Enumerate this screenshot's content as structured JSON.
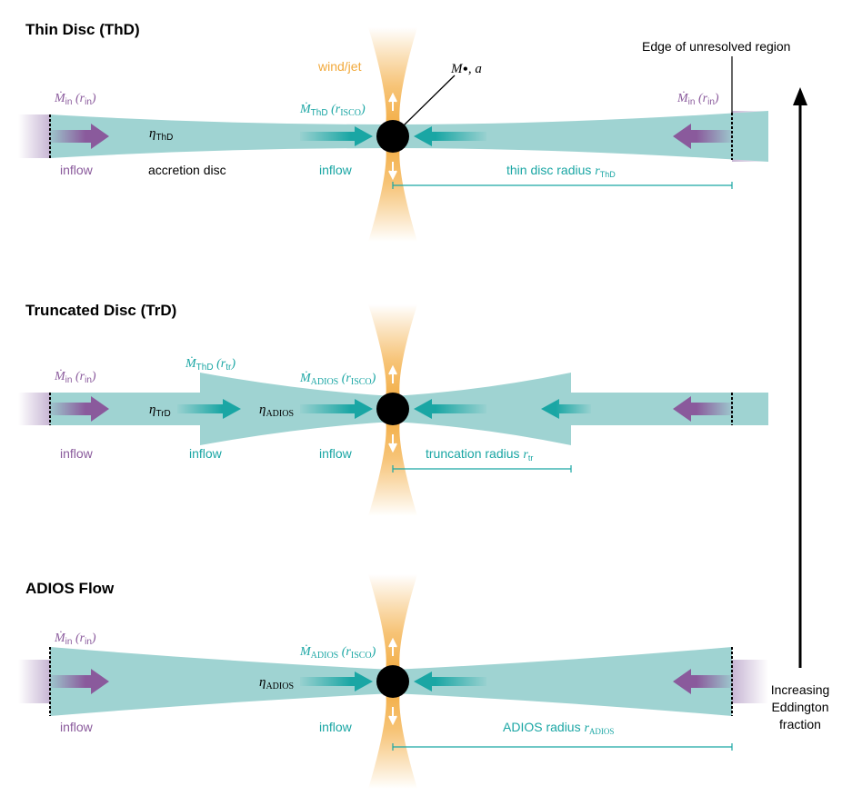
{
  "colors": {
    "teal": "#1aa6a4",
    "disc": "#9fd3d2",
    "purple": "#8a5a9c",
    "orange": "#f2a93b",
    "black": "#000000"
  },
  "panels": [
    {
      "title": "Thin Disc (ThD)",
      "mdot_left_sym": "Ṁ",
      "mdot_left_sub": "in",
      "mdot_left_arg": "r",
      "mdot_left_argsub": "in",
      "mdot_center_sym": "Ṁ",
      "mdot_center_sub": "ThD",
      "mdot_center_arg": "r",
      "mdot_center_argsub": "ISCO",
      "mdot_right_sym": "Ṁ",
      "mdot_right_sub": "in",
      "mdot_right_arg": "r",
      "mdot_right_argsub": "in",
      "eta_sym": "η",
      "eta_sub": "ThD",
      "inflow_left": "inflow",
      "inflow_center": "inflow",
      "disc_label": "accretion disc",
      "wind_label": "wind/jet",
      "bh_label_m": "M",
      "bh_label_a": "a",
      "edge_label": "Edge of unresolved region",
      "radius_text": "thin disc radius ",
      "radius_sym": "r",
      "radius_sub": "ThD"
    },
    {
      "title": "Truncated Disc (TrD)",
      "mdot_left_sym": "Ṁ",
      "mdot_left_sub": "in",
      "mdot_left_arg": "r",
      "mdot_left_argsub": "in",
      "mdot_mid_sym": "Ṁ",
      "mdot_mid_sub": "ThD",
      "mdot_mid_arg": "r",
      "mdot_mid_argsub": "tr",
      "mdot_center_sym": "Ṁ",
      "mdot_center_sub": "ADIOS",
      "mdot_center_arg": "r",
      "mdot_center_argsub": "ISCO",
      "eta1_sym": "η",
      "eta1_sub": "TrD",
      "eta2_sym": "η",
      "eta2_sub": "ADIOS",
      "inflow_left": "inflow",
      "inflow_mid": "inflow",
      "inflow_center": "inflow",
      "radius_text": "truncation radius ",
      "radius_sym": "r",
      "radius_sub": "tr"
    },
    {
      "title": "ADIOS Flow",
      "mdot_left_sym": "Ṁ",
      "mdot_left_sub": "in",
      "mdot_left_arg": "r",
      "mdot_left_argsub": "in",
      "mdot_center_sym": "Ṁ",
      "mdot_center_sub": "ADIOS",
      "mdot_center_arg": "r",
      "mdot_center_argsub": "ISCO",
      "eta_sym": "η",
      "eta_sub": "ADIOS",
      "inflow_left": "inflow",
      "inflow_center": "inflow",
      "radius_text": "ADIOS radius ",
      "radius_sym": "r",
      "radius_sub": "ADIOS"
    }
  ],
  "side_label": [
    "Increasing",
    "Eddington",
    "fraction"
  ]
}
